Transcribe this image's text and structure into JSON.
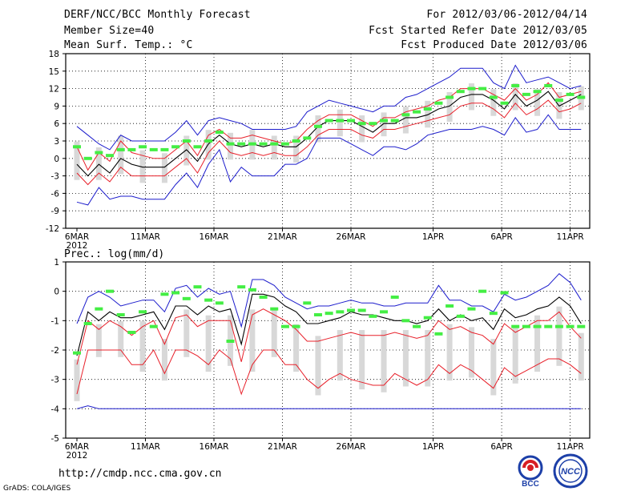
{
  "header": {
    "title": "DERF/NCC/BCC Monthly Forecast",
    "member_size": "Member Size=40",
    "variable": "Mean Surf. Temp.: °C",
    "period": "For 2012/03/06-2012/04/14",
    "started": "Fcst Started Refer Date 2012/03/05",
    "produced": "Fcst Produced Date 2012/03/06"
  },
  "footer": {
    "url": "http://cmdp.ncc.cma.gov.cn",
    "grads": "GrADS: COLA/IGES",
    "logo_left": "BCC",
    "logo_right": "NCC"
  },
  "colors": {
    "mean": "#000000",
    "inner": "#e8202a",
    "outer": "#1c1ccc",
    "obs": "#44ee44",
    "box": "#d8d8d8",
    "grid": "#000000"
  },
  "chart_data": [
    {
      "type": "box-plume",
      "title": "Mean Surf. Temp.: °C",
      "days": 40,
      "x_tick_labels": [
        "6MAR",
        "11MAR",
        "16MAR",
        "21MAR",
        "26MAR",
        "1APR",
        "6APR",
        "11APR"
      ],
      "x_tick_days": [
        0,
        5,
        10,
        15,
        20,
        26,
        31,
        36
      ],
      "year_label": "2012",
      "ylim": [
        -12,
        18
      ],
      "yticks": [
        -12,
        -9,
        -6,
        -3,
        0,
        3,
        6,
        9,
        12,
        15,
        18
      ],
      "series": {
        "mean": [
          -1,
          -3,
          -1,
          -2.5,
          0,
          -1,
          -1.5,
          -1.5,
          -1.5,
          0,
          1.5,
          -0.5,
          2.5,
          4,
          2.5,
          2,
          2.5,
          2,
          2.5,
          2,
          2,
          3.5,
          5.5,
          6.5,
          6.5,
          6.5,
          5.5,
          4.5,
          6,
          6,
          7,
          7,
          7.5,
          8.5,
          9,
          10.5,
          11,
          11,
          10,
          8.5,
          11,
          9,
          10,
          11.5,
          9,
          10,
          11
        ],
        "upper": [
          2,
          -2,
          1,
          -0.5,
          3,
          1,
          0.5,
          0,
          0,
          1.5,
          3,
          0.5,
          4,
          5,
          3.5,
          3.5,
          4,
          3.5,
          3,
          2.5,
          3,
          5,
          6.5,
          7.5,
          7.5,
          7.5,
          6.5,
          5.5,
          7,
          7,
          8,
          8.5,
          9,
          10,
          10.5,
          12,
          12,
          12,
          11,
          10,
          12,
          10,
          11,
          13,
          10.5,
          11,
          11.5
        ],
        "lower": [
          -2.5,
          -4.5,
          -2.5,
          -4,
          -1.5,
          -3,
          -3,
          -3,
          -3,
          -1.5,
          0,
          -2.5,
          1,
          3,
          1,
          0.5,
          1,
          0.5,
          1,
          0.5,
          0.5,
          2,
          4,
          5,
          5,
          5,
          4,
          3.5,
          5,
          5,
          5.5,
          6,
          6.5,
          7,
          7.5,
          9,
          9.5,
          9.5,
          8.5,
          7,
          9.5,
          7.5,
          8.5,
          10,
          8,
          8.5,
          9.5
        ],
        "max": [
          5.5,
          4,
          2.5,
          1.5,
          4,
          3,
          3,
          3,
          3,
          4.5,
          6.5,
          4,
          6.5,
          7,
          6.5,
          6,
          5,
          5,
          5,
          5,
          5.5,
          8,
          9,
          10,
          9.5,
          9,
          8.5,
          8,
          9,
          9,
          10.5,
          11,
          12,
          13,
          14,
          15.5,
          15.5,
          15.5,
          13,
          12,
          16,
          13,
          13.5,
          14,
          13,
          12,
          12.5
        ],
        "min": [
          -7.5,
          -8,
          -5,
          -7,
          -6.5,
          -6.5,
          -7,
          -7,
          -7,
          -4.5,
          -2.5,
          -5,
          -1,
          1.5,
          -4,
          -1.5,
          -3,
          -3,
          -3,
          -1,
          -1,
          0,
          3.5,
          3.5,
          3.5,
          2.5,
          1.5,
          0.5,
          2,
          2,
          1.5,
          2.5,
          4,
          4.5,
          5,
          5,
          5,
          5.5,
          5,
          4,
          7,
          4.5,
          5,
          7.5,
          5,
          5,
          5
        ],
        "obs": [
          2,
          0,
          1,
          0.5,
          1.5,
          1.5,
          2,
          1.5,
          1.5,
          2,
          3,
          2,
          3,
          4.5,
          2.5,
          2.5,
          2.5,
          2.5,
          2.5,
          2.5,
          3,
          3.5,
          5.5,
          6.5,
          6.5,
          6.5,
          6,
          6,
          6.5,
          6.5,
          7.5,
          8,
          8.5,
          9.5,
          10.5,
          11.5,
          12,
          12,
          10.5,
          9.5,
          12.5,
          11,
          11.5,
          12.5,
          10,
          11,
          10.5
        ]
      }
    },
    {
      "type": "box-plume",
      "title": "Prec.: log(mm/d)",
      "days": 40,
      "x_tick_labels": [
        "6MAR",
        "11MAR",
        "16MAR",
        "21MAR",
        "26MAR",
        "1APR",
        "6APR",
        "11APR"
      ],
      "x_tick_days": [
        0,
        5,
        10,
        15,
        20,
        26,
        31,
        36
      ],
      "year_label": "2012",
      "ylim": [
        -5,
        1
      ],
      "yticks": [
        -5,
        -4,
        -3,
        -2,
        -1,
        0,
        1
      ],
      "series": {
        "mean": [
          -2.2,
          -0.7,
          -1,
          -0.7,
          -0.9,
          -0.9,
          -0.8,
          -0.7,
          -1.3,
          -0.5,
          -0.5,
          -0.8,
          -0.5,
          -0.7,
          -0.6,
          -1.8,
          -0.1,
          -0.1,
          -0.2,
          -0.5,
          -0.7,
          -1.1,
          -1.1,
          -1.0,
          -0.9,
          -0.7,
          -0.8,
          -0.8,
          -0.9,
          -1.0,
          -1.0,
          -1.1,
          -1.0,
          -0.6,
          -1.0,
          -0.8,
          -1.0,
          -0.9,
          -1.3,
          -0.6,
          -0.9,
          -0.8,
          -0.6,
          -0.5,
          -0.2,
          -0.5,
          -1.1
        ],
        "upper": [
          -2.5,
          -1,
          -1.3,
          -1,
          -1.2,
          -1.5,
          -1.2,
          -1,
          -1.8,
          -0.9,
          -0.8,
          -1.2,
          -1,
          -1,
          -1,
          -2.4,
          -0.8,
          -0.6,
          -0.8,
          -1,
          -1.3,
          -1.7,
          -1.7,
          -1.6,
          -1.5,
          -1.4,
          -1.5,
          -1.5,
          -1.5,
          -1.4,
          -1.5,
          -1.6,
          -1.5,
          -1,
          -1.3,
          -1.2,
          -1.4,
          -1.5,
          -1.8,
          -1.1,
          -1.4,
          -1.2,
          -1,
          -1,
          -0.7,
          -1.2,
          -1.6
        ],
        "lower": [
          -3.5,
          -2,
          -2,
          -2,
          -2,
          -2.5,
          -2.5,
          -2,
          -2.8,
          -2,
          -2,
          -2.2,
          -2.5,
          -2,
          -2.3,
          -3.5,
          -2.5,
          -2,
          -2,
          -2.5,
          -2.5,
          -3,
          -3.3,
          -3,
          -2.8,
          -3,
          -3.1,
          -3.2,
          -3.2,
          -2.8,
          -3,
          -3.2,
          -3,
          -2.5,
          -2.8,
          -2.5,
          -2.7,
          -3,
          -3.3,
          -2.6,
          -2.9,
          -2.7,
          -2.5,
          -2.3,
          -2.3,
          -2.5,
          -2.8
        ],
        "max": [
          -1.1,
          -0.2,
          0,
          -0.2,
          -0.5,
          -0.4,
          -0.3,
          -0.3,
          -0.7,
          0.1,
          0.2,
          -0.2,
          0.1,
          -0.1,
          0,
          -1.2,
          0.4,
          0.4,
          0.2,
          -0.2,
          -0.4,
          -0.6,
          -0.5,
          -0.5,
          -0.4,
          -0.3,
          -0.4,
          -0.4,
          -0.5,
          -0.5,
          -0.4,
          -0.4,
          -0.4,
          0.2,
          -0.3,
          -0.3,
          -0.5,
          -0.5,
          -0.7,
          -0.1,
          -0.3,
          -0.2,
          0,
          0.2,
          0.6,
          0.3,
          -0.3
        ],
        "min": [
          -4,
          -3.9,
          -4,
          -4,
          -4,
          -4,
          -4,
          -4,
          -4,
          -4,
          -4,
          -4,
          -4,
          -4,
          -4,
          -4,
          -4,
          -4,
          -4,
          -4,
          -4,
          -4,
          -4,
          -4,
          -4,
          -4,
          -4,
          -4,
          -4,
          -4,
          -4,
          -4,
          -4,
          -4,
          -4,
          -4,
          -4,
          -4,
          -4,
          -4,
          -4,
          -4,
          -4,
          -4,
          -4,
          -4,
          -4
        ],
        "obs": [
          -2.1,
          -1.1,
          -0.6,
          0,
          -0.8,
          -1.4,
          -0.7,
          -1.2,
          -0.1,
          -0.05,
          -0.25,
          0.15,
          -0.3,
          -0.4,
          -1.7,
          0.15,
          0.05,
          -0.2,
          -0.6,
          -1.2,
          -1.2,
          -0.4,
          -0.8,
          -0.75,
          -0.7,
          -0.65,
          -0.65,
          -0.85,
          -0.7,
          -0.2,
          -1.0,
          -1.2,
          -0.9,
          -1.45,
          -0.5,
          -0.85,
          -0.6,
          0,
          -0.75,
          -0.05,
          -1.2,
          -1.2,
          -1.2,
          -1.2,
          -1.2,
          -1.2,
          -1.2
        ]
      }
    }
  ]
}
